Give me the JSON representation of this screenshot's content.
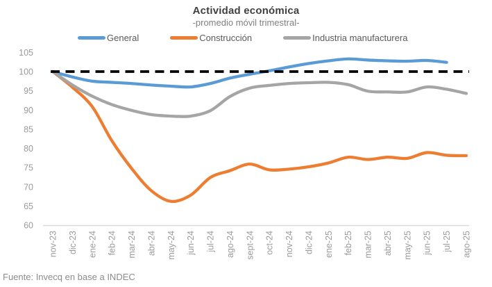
{
  "header": {
    "title": "Actividad económica",
    "subtitle": "-promedio móvil trimestral-"
  },
  "footer": {
    "source": "Fuente: Invecq en base a INDEC"
  },
  "chart_data": {
    "type": "line",
    "title": "Actividad económica",
    "subtitle": "-promedio móvil trimestral-",
    "categories": [
      "nov-23",
      "dic-23",
      "ene-24",
      "feb-24",
      "mar-24",
      "abr-24",
      "may-24",
      "jun-24",
      "jul-24",
      "ago-24",
      "sept-24",
      "oct-24",
      "nov-24",
      "dic-24",
      "ene-25",
      "feb-25",
      "mar-25",
      "abr-25",
      "may-25",
      "jun-25",
      "jul-25",
      "ago-25"
    ],
    "series": [
      {
        "name": "General",
        "color": "#5B9BD5",
        "values": [
          100,
          98.6,
          97.5,
          97.2,
          96.9,
          96.5,
          96.2,
          96.0,
          96.9,
          98.3,
          99.3,
          100.2,
          101.2,
          102.1,
          102.8,
          103.3,
          103.0,
          102.8,
          102.7,
          102.9,
          102.4,
          null
        ]
      },
      {
        "name": "Construcción",
        "color": "#ED7D31",
        "values": [
          100,
          95.9,
          90.9,
          82.0,
          74.8,
          69.0,
          66.2,
          67.8,
          72.4,
          74.2,
          75.9,
          74.4,
          74.6,
          75.2,
          76.2,
          77.7,
          77.1,
          77.7,
          77.4,
          78.9,
          78.2,
          78.1
        ]
      },
      {
        "name": "Industria manufacturera",
        "color": "#A5A5A5",
        "values": [
          100,
          96.5,
          93.6,
          91.4,
          89.9,
          88.8,
          88.4,
          88.4,
          89.8,
          93.5,
          95.7,
          96.4,
          96.9,
          97.1,
          97.2,
          96.6,
          94.9,
          94.7,
          94.7,
          96.0,
          95.4,
          94.3
        ]
      }
    ],
    "baseline": {
      "value": 100,
      "style": "dashed",
      "color": "#000000"
    },
    "ylim": [
      60,
      105
    ],
    "ytick_step": 5,
    "grid": false,
    "legend_position": "top",
    "axis_line_color": "#d9d9d9",
    "tick_label_color": "#9b9b9b"
  }
}
